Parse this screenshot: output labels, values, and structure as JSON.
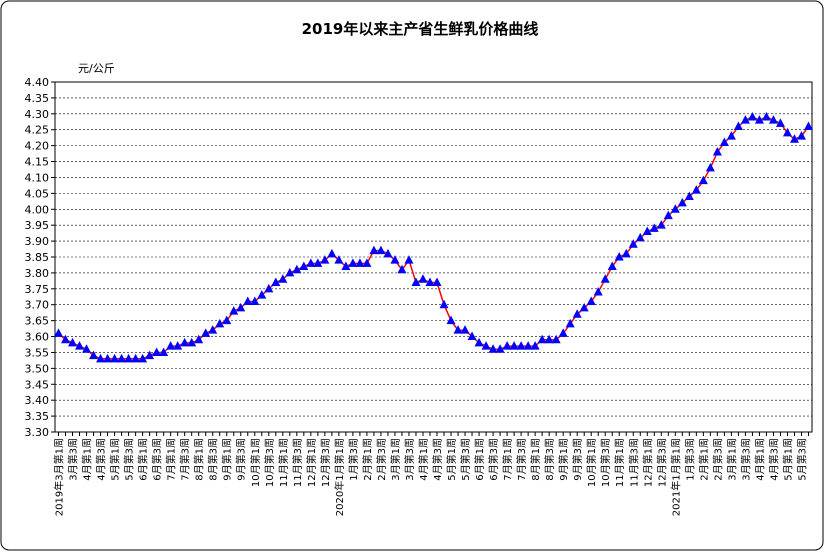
{
  "chart_data": {
    "type": "line",
    "title": "2019年以来主产省生鲜乳价格曲线",
    "y_label": "元/公斤",
    "color": "#ff0000",
    "marker_color": "#0000ff",
    "ylim": [
      3.3,
      4.4
    ],
    "yticks": [
      {
        "value": 3.3,
        "label": "3.30"
      },
      {
        "value": 3.35,
        "label": "3.35"
      },
      {
        "value": 3.4,
        "label": "3.40"
      },
      {
        "value": 3.45,
        "label": "3.45"
      },
      {
        "value": 3.5,
        "label": "3.50"
      },
      {
        "value": 3.55,
        "label": "3.55"
      },
      {
        "value": 3.6,
        "label": "3.60"
      },
      {
        "value": 3.65,
        "label": "3.65"
      },
      {
        "value": 3.7,
        "label": "3.70"
      },
      {
        "value": 3.75,
        "label": "3.75"
      },
      {
        "value": 3.8,
        "label": "3.80"
      },
      {
        "value": 3.85,
        "label": "3.85"
      },
      {
        "value": 3.9,
        "label": "3.90"
      },
      {
        "value": 3.95,
        "label": "3.95"
      },
      {
        "value": 4.0,
        "label": "4.00"
      },
      {
        "value": 4.05,
        "label": "4.05"
      },
      {
        "value": 4.1,
        "label": "4.10"
      },
      {
        "value": 4.15,
        "label": "4.15"
      },
      {
        "value": 4.2,
        "label": "4.20"
      },
      {
        "value": 4.25,
        "label": "4.25"
      },
      {
        "value": 4.3,
        "label": "4.30"
      },
      {
        "value": 4.35,
        "label": "4.35"
      },
      {
        "value": 4.4,
        "label": "4.40"
      }
    ],
    "grid": true,
    "categories": [
      "2019年3月第1周",
      null,
      "3月第3周",
      null,
      "4月第1周",
      null,
      "4月第3周",
      null,
      "5月第1周",
      null,
      "5月第3周",
      null,
      "6月第1周",
      null,
      "6月第3周",
      null,
      "7月第1周",
      null,
      "7月第3周",
      null,
      "8月第1周",
      null,
      "8月第3周",
      null,
      "9月第1周",
      null,
      "9月第3周",
      null,
      "10月第1周",
      null,
      "10月第3周",
      null,
      "11月第1周",
      null,
      "11月第3周",
      null,
      "12月第1周",
      null,
      "12月第3周",
      null,
      "2020年1月第1周",
      null,
      "1月第3周",
      null,
      "2月第1周",
      null,
      "2月第3周",
      null,
      "3月第1周",
      null,
      "3月第3周",
      null,
      "4月第1周",
      null,
      "4月第3周",
      null,
      "5月第1周",
      null,
      "5月第3周",
      null,
      "6月第1周",
      null,
      "6月第3周",
      null,
      "7月第1周",
      null,
      "7月第3周",
      null,
      "8月第1周",
      null,
      "8月第3周",
      null,
      "9月第1周",
      null,
      "9月第3周",
      null,
      "10月第1周",
      null,
      "10月第3周",
      null,
      "11月第1周",
      null,
      "11月第3周",
      null,
      "12月第1周",
      null,
      "12月第3周",
      null,
      "2021年1月第1周",
      null,
      "1月第3周",
      null,
      "2月第1周",
      null,
      "2月第3周",
      null,
      "3月第1周",
      null,
      "3月第3周",
      null,
      "4月第1周",
      null,
      "4月第3周",
      null,
      "5月第1周",
      null,
      "5月第3周",
      null
    ],
    "values": [
      3.61,
      3.59,
      3.58,
      3.57,
      3.56,
      3.54,
      3.53,
      3.53,
      3.53,
      3.53,
      3.53,
      3.53,
      3.53,
      3.54,
      3.55,
      3.55,
      3.57,
      3.57,
      3.58,
      3.58,
      3.59,
      3.61,
      3.62,
      3.64,
      3.65,
      3.68,
      3.69,
      3.71,
      3.71,
      3.73,
      3.75,
      3.77,
      3.78,
      3.8,
      3.81,
      3.82,
      3.83,
      3.83,
      3.84,
      3.86,
      3.84,
      3.82,
      3.83,
      3.83,
      3.83,
      3.87,
      3.87,
      3.86,
      3.84,
      3.81,
      3.84,
      3.77,
      3.78,
      3.77,
      3.77,
      3.7,
      3.65,
      3.62,
      3.62,
      3.6,
      3.58,
      3.57,
      3.56,
      3.56,
      3.57,
      3.57,
      3.57,
      3.57,
      3.57,
      3.59,
      3.59,
      3.59,
      3.61,
      3.64,
      3.67,
      3.69,
      3.71,
      3.74,
      3.78,
      3.82,
      3.85,
      3.86,
      3.89,
      3.91,
      3.93,
      3.94,
      3.95,
      3.98,
      4.0,
      4.02,
      4.04,
      4.06,
      4.09,
      4.13,
      4.18,
      4.21,
      4.23,
      4.26,
      4.28,
      4.29,
      4.28,
      4.29,
      4.28,
      4.27,
      4.24,
      4.22,
      4.23,
      4.26
    ]
  }
}
